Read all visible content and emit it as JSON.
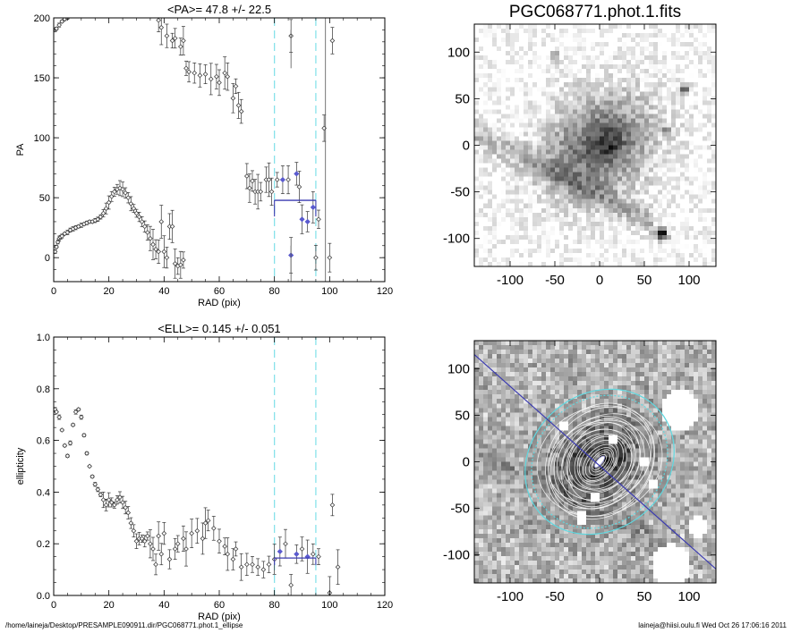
{
  "footer": {
    "path": "/home/laineja/Desktop/PRESAMPLE090911.dir/PGC068771.phot.1_ellipse",
    "user_stamp": "laineja@hiisi.oulu.fi  Wed Oct 26 17:06:16 2011"
  },
  "colors": {
    "guide_line": "#7fe0e8",
    "mean_line": "#3a3ab0",
    "marker": "#444444",
    "marker_blue": "#5a5ad0"
  },
  "chart_data": [
    {
      "id": "pa",
      "type": "scatter",
      "title": "<PA>=  47.8 +/-  22.5",
      "xlabel": "RAD (pix)",
      "ylabel": "PA",
      "xlim": [
        0,
        120
      ],
      "ylim": [
        -20,
        200
      ],
      "xticks": [
        0,
        20,
        40,
        60,
        80,
        100,
        120
      ],
      "yticks": [
        0,
        50,
        100,
        150,
        200
      ],
      "guides_x": [
        80,
        95
      ],
      "mean": {
        "value": 47.8,
        "x_range": [
          80,
          95
        ]
      },
      "points": [
        [
          0.5,
          5
        ],
        [
          1,
          9
        ],
        [
          1.5,
          13
        ],
        [
          2,
          16
        ],
        [
          2.5,
          17
        ],
        [
          3,
          18
        ],
        [
          4,
          20
        ],
        [
          5,
          21
        ],
        [
          6,
          23
        ],
        [
          7,
          24
        ],
        [
          8,
          25
        ],
        [
          9,
          26
        ],
        [
          10,
          27
        ],
        [
          11,
          28
        ],
        [
          12,
          29
        ],
        [
          13,
          30
        ],
        [
          14,
          30
        ],
        [
          15,
          31
        ],
        [
          16,
          32
        ],
        [
          17,
          34
        ],
        [
          18,
          37
        ],
        [
          19,
          41
        ],
        [
          20,
          46
        ],
        [
          21,
          51
        ],
        [
          22,
          55
        ],
        [
          23,
          57
        ],
        [
          24,
          58
        ],
        [
          25,
          57
        ],
        [
          26,
          54
        ],
        [
          27,
          50
        ],
        [
          28,
          45
        ],
        [
          29,
          41
        ],
        [
          30,
          37
        ],
        [
          31,
          34
        ],
        [
          32,
          30
        ],
        [
          33,
          26
        ],
        [
          34,
          21
        ],
        [
          35,
          16
        ],
        [
          36,
          11
        ],
        [
          37,
          7
        ],
        [
          38,
          5
        ],
        [
          39,
          30
        ],
        [
          40,
          5
        ],
        [
          41,
          0
        ],
        [
          42,
          26
        ],
        [
          43,
          26
        ],
        [
          44,
          -5
        ],
        [
          45,
          -7
        ],
        [
          46,
          -6
        ],
        [
          47,
          -2
        ],
        [
          0.5,
          190
        ],
        [
          1,
          191
        ],
        [
          2,
          194
        ],
        [
          3,
          197
        ],
        [
          4,
          199
        ],
        [
          5,
          200
        ],
        [
          38,
          198
        ],
        [
          39,
          192
        ],
        [
          41,
          185
        ],
        [
          43,
          181
        ],
        [
          44,
          183
        ],
        [
          46,
          176
        ],
        [
          47,
          181
        ],
        [
          48,
          158
        ],
        [
          49,
          155
        ],
        [
          51,
          154
        ],
        [
          53,
          152
        ],
        [
          55,
          153
        ],
        [
          57,
          149
        ],
        [
          59,
          151
        ],
        [
          60,
          146
        ],
        [
          62,
          154
        ],
        [
          63,
          151
        ],
        [
          65,
          133
        ],
        [
          66,
          143
        ],
        [
          67,
          127
        ],
        [
          68,
          122
        ],
        [
          70,
          68
        ],
        [
          71,
          58
        ],
        [
          72,
          64
        ],
        [
          73,
          55
        ],
        [
          74,
          55
        ],
        [
          75,
          55
        ],
        [
          77,
          65
        ],
        [
          78,
          65
        ],
        [
          79,
          55
        ],
        [
          81,
          65
        ],
        [
          83,
          65
        ],
        [
          85,
          65
        ],
        [
          88,
          70
        ],
        [
          89,
          59
        ],
        [
          90,
          32
        ],
        [
          92,
          30
        ],
        [
          94,
          42
        ],
        [
          86,
          2
        ],
        [
          95,
          0
        ],
        [
          96,
          32
        ],
        [
          98,
          108
        ],
        [
          100,
          0
        ],
        [
          86,
          185
        ],
        [
          101,
          181
        ]
      ],
      "blue_points": [
        [
          83,
          65
        ],
        [
          88,
          70
        ],
        [
          90,
          32
        ],
        [
          92,
          30
        ],
        [
          94,
          42
        ],
        [
          86,
          2
        ]
      ]
    },
    {
      "id": "ell",
      "type": "scatter",
      "title": "<ELL>= 0.145 +/-  0.051",
      "xlabel": "RAD (pix)",
      "ylabel": "ellipticity",
      "xlim": [
        0,
        120
      ],
      "ylim": [
        0.0,
        1.0
      ],
      "xticks": [
        0,
        20,
        40,
        60,
        80,
        100,
        120
      ],
      "yticks": [
        0.0,
        0.2,
        0.4,
        0.6,
        0.8,
        1.0
      ],
      "ytick_labels": [
        "0.0",
        "0.2",
        "0.4",
        "0.6",
        "0.8",
        "1.0"
      ],
      "guides_x": [
        80,
        95
      ],
      "mean": {
        "value": 0.145,
        "x_range": [
          80,
          95
        ]
      },
      "points": [
        [
          0.5,
          0.72
        ],
        [
          1,
          0.71
        ],
        [
          2,
          0.69
        ],
        [
          3,
          0.64
        ],
        [
          4,
          0.58
        ],
        [
          5,
          0.54
        ],
        [
          6,
          0.59
        ],
        [
          7,
          0.66
        ],
        [
          8,
          0.71
        ],
        [
          9,
          0.72
        ],
        [
          10,
          0.69
        ],
        [
          11,
          0.62
        ],
        [
          12,
          0.55
        ],
        [
          13,
          0.5
        ],
        [
          14,
          0.46
        ],
        [
          15,
          0.43
        ],
        [
          16,
          0.41
        ],
        [
          17,
          0.39
        ],
        [
          18,
          0.37
        ],
        [
          19,
          0.35
        ],
        [
          20,
          0.37
        ],
        [
          21,
          0.36
        ],
        [
          22,
          0.35
        ],
        [
          23,
          0.37
        ],
        [
          24,
          0.38
        ],
        [
          25,
          0.36
        ],
        [
          26,
          0.34
        ],
        [
          27,
          0.32
        ],
        [
          28,
          0.28
        ],
        [
          29,
          0.25
        ],
        [
          30,
          0.21
        ],
        [
          31,
          0.22
        ],
        [
          32,
          0.22
        ],
        [
          33,
          0.21
        ],
        [
          34,
          0.23
        ],
        [
          35,
          0.2
        ],
        [
          36,
          0.18
        ],
        [
          37,
          0.12
        ],
        [
          38,
          0.23
        ],
        [
          39,
          0.16
        ],
        [
          40,
          0.24
        ],
        [
          42,
          0.14
        ],
        [
          44,
          0.18
        ],
        [
          45,
          0.2
        ],
        [
          47,
          0.22
        ],
        [
          48,
          0.18
        ],
        [
          50,
          0.24
        ],
        [
          52,
          0.25
        ],
        [
          54,
          0.22
        ],
        [
          55,
          0.28
        ],
        [
          56,
          0.29
        ],
        [
          58,
          0.26
        ],
        [
          60,
          0.21
        ],
        [
          62,
          0.19
        ],
        [
          63,
          0.16
        ],
        [
          65,
          0.14
        ],
        [
          66,
          0.18
        ],
        [
          68,
          0.11
        ],
        [
          70,
          0.12
        ],
        [
          72,
          0.12
        ],
        [
          74,
          0.11
        ],
        [
          76,
          0.1
        ],
        [
          78,
          0.12
        ],
        [
          80,
          0.14
        ],
        [
          82,
          0.17
        ],
        [
          84,
          0.2
        ],
        [
          86,
          0.04
        ],
        [
          88,
          0.16
        ],
        [
          90,
          0.18
        ],
        [
          92,
          0.15
        ],
        [
          94,
          0.16
        ],
        [
          96,
          0.15
        ],
        [
          100,
          0.01
        ],
        [
          101,
          0.35
        ],
        [
          103,
          0.11
        ]
      ],
      "blue_points": [
        [
          82,
          0.17
        ],
        [
          88,
          0.16
        ],
        [
          92,
          0.15
        ]
      ]
    }
  ],
  "images": [
    {
      "id": "galaxy",
      "title": "PGC068771.phot.1.fits",
      "xlim": [
        -140,
        130
      ],
      "ylim": [
        -130,
        130
      ],
      "xticks": [
        -100,
        -50,
        0,
        50,
        100
      ],
      "yticks": [
        -100,
        -50,
        0,
        50,
        100
      ]
    },
    {
      "id": "model",
      "title": "",
      "xlim": [
        -140,
        130
      ],
      "ylim": [
        -130,
        130
      ],
      "xticks": [
        -100,
        -50,
        0,
        50,
        100
      ],
      "yticks": [
        -100,
        -50,
        0,
        50,
        100
      ]
    }
  ]
}
